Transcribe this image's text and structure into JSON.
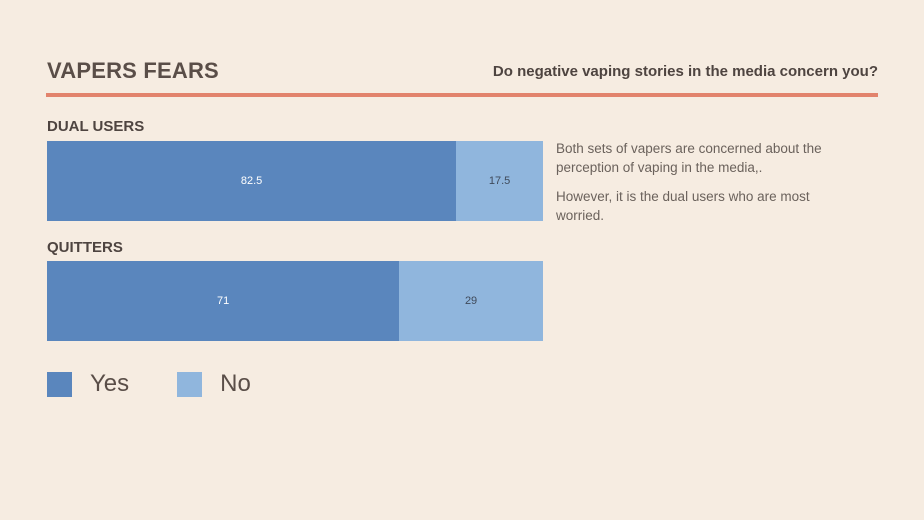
{
  "header": {
    "title": "VAPERS FEARS",
    "question": "Do negative vaping stories in the media concern you?"
  },
  "notes": {
    "line1": "Both sets of vapers are concerned about the perception of vaping in the media,.",
    "line2": "However, it is the dual users who are most worried."
  },
  "colors": {
    "yes": "#5a86bd",
    "no": "#90b6dd",
    "accent": "#e2836c"
  },
  "chart_data": {
    "type": "bar",
    "orientation": "horizontal",
    "stacked": true,
    "categories": [
      "DUAL USERS",
      "QUITTERS"
    ],
    "series": [
      {
        "name": "Yes",
        "values": [
          82.5,
          71
        ]
      },
      {
        "name": "No",
        "values": [
          17.5,
          29
        ]
      }
    ],
    "legend": [
      "Yes",
      "No"
    ],
    "legend_position": "bottom-left",
    "xlim": [
      0,
      100
    ],
    "grid": false
  }
}
